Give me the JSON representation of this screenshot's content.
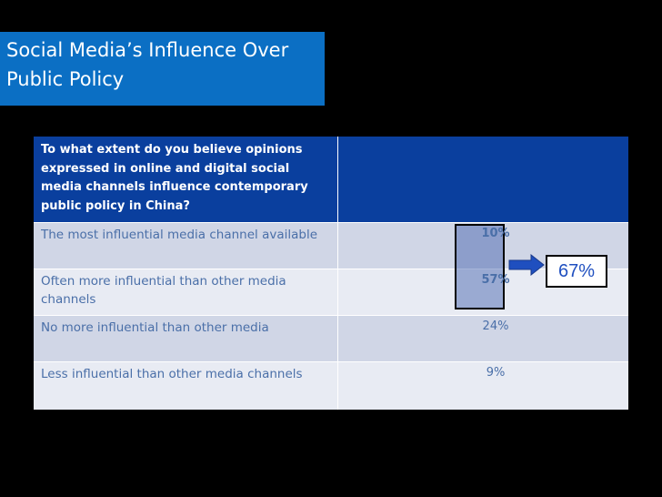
{
  "title": "Social Media’s Influence Over Public Policy",
  "table": {
    "header": "To what extent do you believe opinions expressed in online and digital social media channels influence contemporary public policy in China?",
    "rows": [
      [
        "The most influential media channel available",
        "10%"
      ],
      [
        "Often more influential than other media channels",
        "57%"
      ],
      [
        "No more influential than other media",
        "24%"
      ],
      [
        "Less influential than other media channels",
        "9%"
      ]
    ]
  },
  "callout": "67%"
}
